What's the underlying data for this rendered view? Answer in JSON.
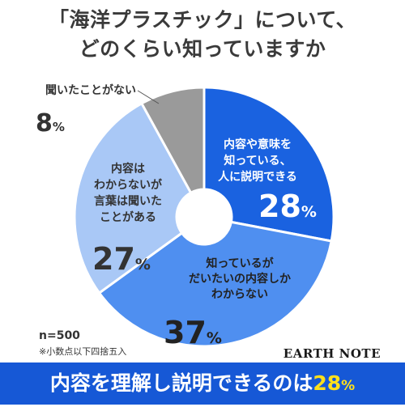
{
  "title_line1": "「海洋プラスチック」について、",
  "title_line2": "どのくらい知っていますか",
  "chart_data": {
    "type": "pie",
    "slices": [
      {
        "label": [
          "内容や意味を",
          "知っている、",
          "人に説明できる"
        ],
        "value": 28,
        "color": "#1a62e0"
      },
      {
        "label": [
          "知っているが",
          "だいたいの内容しか",
          "わからない"
        ],
        "value": 37,
        "color": "#4f8ff0"
      },
      {
        "label": [
          "内容は",
          "わからないが",
          "言葉は聞いた",
          "ことがある"
        ],
        "value": 27,
        "color": "#a9c8f6"
      },
      {
        "label": [
          "聞いたことがない"
        ],
        "value": 8,
        "color": "#9a9a9a"
      }
    ],
    "unit": "%"
  },
  "sample_size": "n=500",
  "footnote": "※小数点以下四捨五入",
  "brand": "EARTH NOTE",
  "banner": {
    "text": "内容を理解し説明できるのは",
    "value": "28",
    "unit": "%"
  }
}
